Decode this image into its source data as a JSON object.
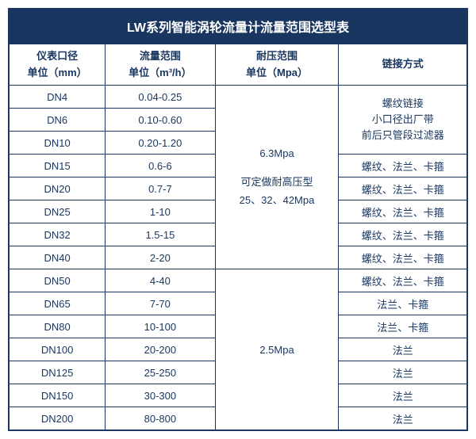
{
  "title": "LW系列智能涡轮流量计流量范围选型表",
  "headers": {
    "col_a": "仪表口径\n单位（mm）",
    "col_b": "流量范围\n单位（m³/h）",
    "col_c": "耐压范围\n单位（Mpa）",
    "col_d": "链接方式"
  },
  "rows": [
    {
      "dn": "DN4",
      "range": "0.04-0.25"
    },
    {
      "dn": "DN6",
      "range": "0.10-0.60"
    },
    {
      "dn": "DN10",
      "range": "0.20-1.20"
    },
    {
      "dn": "DN15",
      "range": "0.6-6"
    },
    {
      "dn": "DN20",
      "range": "0.7-7"
    },
    {
      "dn": "DN25",
      "range": "1-10"
    },
    {
      "dn": "DN32",
      "range": "1.5-15"
    },
    {
      "dn": "DN40",
      "range": "2-20"
    },
    {
      "dn": "DN50",
      "range": "4-40"
    },
    {
      "dn": "DN65",
      "range": "7-70"
    },
    {
      "dn": "DN80",
      "range": "10-100"
    },
    {
      "dn": "DN100",
      "range": "20-200"
    },
    {
      "dn": "DN125",
      "range": "25-250"
    },
    {
      "dn": "DN150",
      "range": "30-300"
    },
    {
      "dn": "DN200",
      "range": "80-800"
    }
  ],
  "pressure": {
    "top_line1": "6.3Mpa",
    "top_line2": "可定做耐高压型",
    "top_line3": "25、32、42Mpa",
    "bottom": "2.5Mpa"
  },
  "connection": {
    "small_line1": "螺纹链接",
    "small_line2": "小口径出厂带",
    "small_line3": "前后只管段过滤器",
    "opt_slk": "螺纹、法兰、卡箍",
    "opt_lk": "法兰、卡箍",
    "opt_l": "法兰"
  },
  "colors": {
    "header_bg": "#18365f",
    "border": "#18365f",
    "text": "#18365f",
    "title_text": "#ffffff"
  }
}
